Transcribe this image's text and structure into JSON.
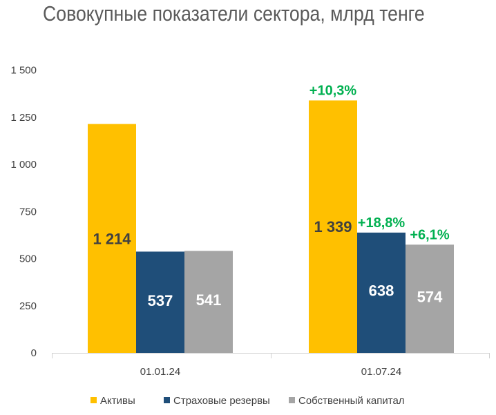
{
  "chart_data": {
    "type": "bar",
    "title": "Совокупные показатели сектора, млрд тенге",
    "categories": [
      "01.01.24",
      "01.07.24"
    ],
    "series": [
      {
        "name": "Активы",
        "color": "#FFC000",
        "values": [
          1214,
          1339
        ],
        "labels": [
          "1 214",
          "1 339"
        ],
        "label_color": "#404040",
        "changes": [
          "",
          "+10,3%"
        ]
      },
      {
        "name": "Страховые резервы",
        "color": "#1F4E79",
        "values": [
          537,
          638
        ],
        "labels": [
          "537",
          "638"
        ],
        "label_color": "#ffffff",
        "changes": [
          "",
          "+18,8%"
        ]
      },
      {
        "name": "Собственный капитал",
        "color": "#A5A5A5",
        "values": [
          541,
          574
        ],
        "labels": [
          "541",
          "574"
        ],
        "label_color": "#ffffff",
        "changes": [
          "",
          "+6,1%"
        ]
      }
    ],
    "yticks": [
      "0",
      "250",
      "500",
      "750",
      "1 000",
      "1 250",
      "1 500"
    ],
    "ylim": [
      0,
      1500
    ],
    "change_color": "#00B050",
    "legend_position": "bottom",
    "grid": false
  }
}
